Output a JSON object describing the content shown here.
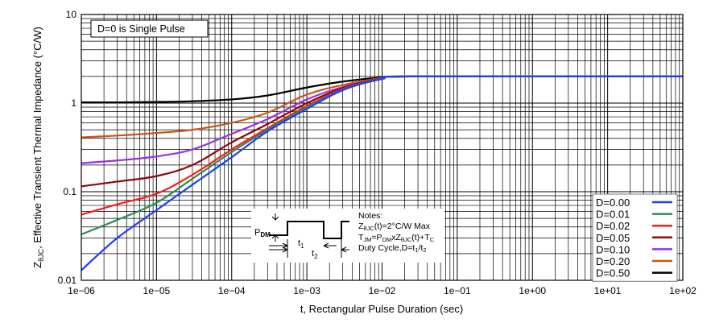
{
  "chart_data": {
    "type": "line",
    "xscale": "log",
    "yscale": "log",
    "xlim": [
      1e-06,
      100
    ],
    "ylim": [
      0.01,
      10
    ],
    "grid": true,
    "xlabel": "t, Rectangular Pulse Duration (sec)",
    "ylabel": {
      "main": "Z",
      "sub": "θJC",
      "rest": ", Effective Transient Thermal Impedance (°C/W)"
    },
    "xticks": [
      {
        "v": 1e-06,
        "label": "1e−06"
      },
      {
        "v": 1e-05,
        "label": "1e−05"
      },
      {
        "v": 0.0001,
        "label": "1e−04"
      },
      {
        "v": 0.001,
        "label": "1e−03"
      },
      {
        "v": 0.01,
        "label": "1e−02"
      },
      {
        "v": 0.1,
        "label": "1e−01"
      },
      {
        "v": 1,
        "label": "1e+00"
      },
      {
        "v": 10,
        "label": "1e+01"
      },
      {
        "v": 100,
        "label": "1e+02"
      }
    ],
    "yticks": [
      {
        "v": 10,
        "label": "10"
      },
      {
        "v": 1,
        "label": "1"
      },
      {
        "v": 0.1,
        "label": "0.1"
      },
      {
        "v": 0.01,
        "label": "0.01"
      }
    ],
    "annotation": "D=0 is Single Pulse",
    "legend_position": "bottom-right",
    "x": [
      1e-06,
      3e-06,
      1e-05,
      3e-05,
      0.0001,
      0.0003,
      0.001,
      0.003,
      0.01,
      0.025,
      100
    ],
    "series": [
      {
        "name": "D=0.00",
        "color": "#1f3ff0",
        "values": [
          0.013,
          0.03,
          0.062,
          0.12,
          0.245,
          0.48,
          0.86,
          1.4,
          1.87,
          2.0,
          2.0
        ]
      },
      {
        "name": "D=0.01",
        "color": "#2e8b57",
        "values": [
          0.033,
          0.048,
          0.075,
          0.14,
          0.28,
          0.5,
          0.9,
          1.42,
          1.88,
          2.0,
          2.0
        ]
      },
      {
        "name": "D=0.02",
        "color": "#ff1a1a",
        "values": [
          0.055,
          0.072,
          0.095,
          0.155,
          0.3,
          0.52,
          0.93,
          1.44,
          1.89,
          2.0,
          2.0
        ]
      },
      {
        "name": "D=0.05",
        "color": "#8b0a0a",
        "values": [
          0.115,
          0.13,
          0.15,
          0.2,
          0.36,
          0.58,
          1.0,
          1.48,
          1.9,
          2.0,
          2.0
        ]
      },
      {
        "name": "D=0.10",
        "color": "#9b30e0",
        "values": [
          0.21,
          0.225,
          0.25,
          0.3,
          0.45,
          0.66,
          1.1,
          1.52,
          1.9,
          2.0,
          2.0
        ]
      },
      {
        "name": "D=0.20",
        "color": "#c8561a",
        "values": [
          0.41,
          0.43,
          0.46,
          0.5,
          0.6,
          0.78,
          1.25,
          1.6,
          1.92,
          2.0,
          2.0
        ]
      },
      {
        "name": "D=0.50",
        "color": "#000000",
        "values": [
          1.02,
          1.02,
          1.03,
          1.05,
          1.1,
          1.22,
          1.5,
          1.75,
          1.95,
          2.0,
          2.0
        ]
      }
    ],
    "notes": {
      "title": "Notes:",
      "line1": {
        "a": "Z",
        "sub": "θJC",
        "b": "(t)=2°C/W Max"
      },
      "line2": {
        "a": "T",
        "sub1": "JM",
        "b": "=P",
        "sub2": "DM",
        "c": "xZ",
        "sub3": "θJC",
        "d": "(t)+T",
        "sub4": "C"
      },
      "line3": {
        "a": "Duty Cycle,D=t",
        "sub1": "1",
        "b": "/t",
        "sub2": "2"
      },
      "pdm": {
        "a": "P",
        "sub": "DM"
      },
      "t1": {
        "a": "t",
        "sub": "1"
      },
      "t2": {
        "a": "t",
        "sub": "2"
      }
    }
  }
}
